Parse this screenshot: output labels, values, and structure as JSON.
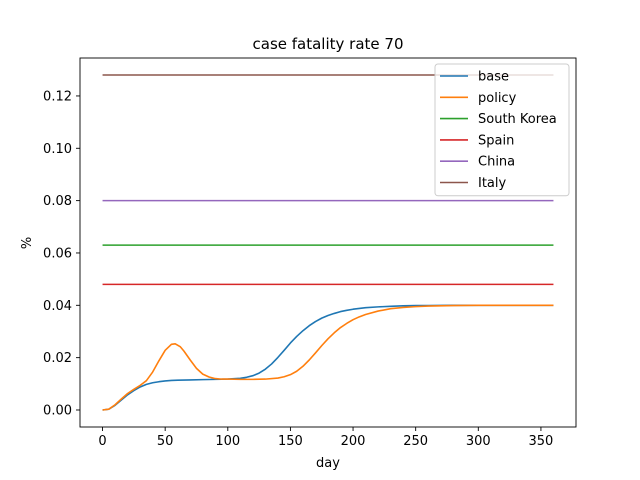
{
  "chart_data": {
    "type": "line",
    "title": "case fatality rate 70",
    "xlabel": "day",
    "ylabel": "%",
    "xlim": [
      -18,
      378
    ],
    "ylim": [
      -0.0065,
      0.1345
    ],
    "xticks": [
      0,
      50,
      100,
      150,
      200,
      250,
      300,
      350
    ],
    "yticks": [
      0.0,
      0.02,
      0.04,
      0.06,
      0.08,
      0.1,
      0.12
    ],
    "ytick_labels": [
      "0.00",
      "0.02",
      "0.04",
      "0.06",
      "0.08",
      "0.10",
      "0.12"
    ],
    "legend_position": "upper right",
    "grid": false,
    "series": [
      {
        "name": "base",
        "color": "#1f77b4",
        "x": [
          0,
          5,
          10,
          15,
          20,
          25,
          30,
          35,
          40,
          45,
          50,
          55,
          60,
          70,
          80,
          90,
          100,
          110,
          115,
          120,
          125,
          130,
          135,
          140,
          145,
          150,
          155,
          160,
          165,
          170,
          175,
          180,
          185,
          190,
          195,
          200,
          210,
          220,
          230,
          240,
          250,
          260,
          280,
          300,
          330,
          360
        ],
        "y": [
          0.0,
          0.0003,
          0.0018,
          0.0038,
          0.0058,
          0.0074,
          0.0088,
          0.0098,
          0.0104,
          0.0108,
          0.0111,
          0.0113,
          0.0114,
          0.0115,
          0.0116,
          0.0117,
          0.0118,
          0.0121,
          0.0125,
          0.0131,
          0.0141,
          0.0156,
          0.0176,
          0.0201,
          0.0228,
          0.0256,
          0.0281,
          0.0303,
          0.0322,
          0.0338,
          0.0351,
          0.0361,
          0.0369,
          0.0376,
          0.0381,
          0.0385,
          0.0391,
          0.0394,
          0.0396,
          0.0398,
          0.0399,
          0.0399,
          0.04,
          0.04,
          0.04,
          0.04
        ]
      },
      {
        "name": "policy",
        "color": "#ff7f0e",
        "x": [
          0,
          5,
          10,
          15,
          20,
          25,
          30,
          35,
          40,
          45,
          50,
          55,
          58,
          62,
          65,
          70,
          75,
          80,
          85,
          90,
          95,
          100,
          110,
          120,
          130,
          140,
          145,
          150,
          155,
          160,
          165,
          170,
          175,
          180,
          185,
          190,
          195,
          200,
          205,
          210,
          220,
          230,
          240,
          250,
          260,
          280,
          300,
          330,
          360
        ],
        "y": [
          0.0,
          0.0003,
          0.002,
          0.0042,
          0.0063,
          0.0079,
          0.0094,
          0.0112,
          0.0145,
          0.0188,
          0.0228,
          0.0251,
          0.0253,
          0.0242,
          0.0225,
          0.0191,
          0.0159,
          0.0137,
          0.0126,
          0.012,
          0.0118,
          0.0118,
          0.0117,
          0.0117,
          0.0118,
          0.0122,
          0.0127,
          0.0135,
          0.0148,
          0.0167,
          0.0191,
          0.0218,
          0.0246,
          0.0272,
          0.0295,
          0.0315,
          0.0331,
          0.0345,
          0.0356,
          0.0365,
          0.0378,
          0.0387,
          0.0392,
          0.0395,
          0.0397,
          0.0399,
          0.04,
          0.04,
          0.04
        ]
      },
      {
        "name": "South Korea",
        "color": "#2ca02c",
        "x": [
          0,
          360
        ],
        "y": [
          0.063,
          0.063
        ]
      },
      {
        "name": "Spain",
        "color": "#d62728",
        "x": [
          0,
          360
        ],
        "y": [
          0.048,
          0.048
        ]
      },
      {
        "name": "China",
        "color": "#9467bd",
        "x": [
          0,
          360
        ],
        "y": [
          0.08,
          0.08
        ]
      },
      {
        "name": "Italy",
        "color": "#8c564b",
        "x": [
          0,
          360
        ],
        "y": [
          0.128,
          0.128
        ]
      }
    ]
  }
}
